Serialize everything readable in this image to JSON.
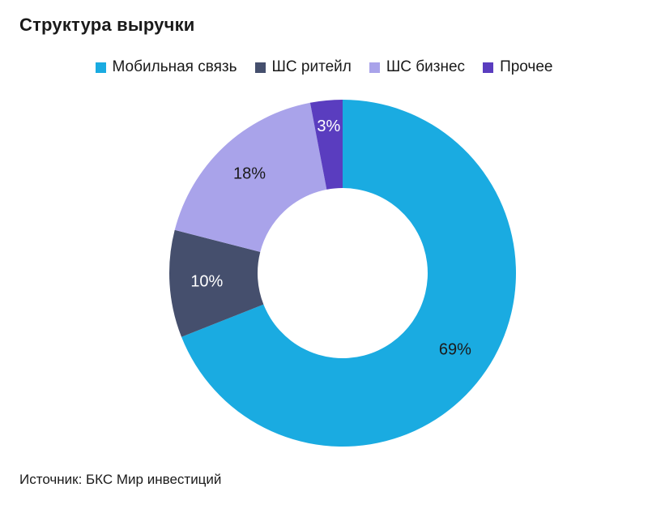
{
  "chart_data": {
    "type": "pie",
    "title": "Структура выручки",
    "categories": [
      "Мобильная связь",
      "ШС ритейл",
      "ШС бизнес",
      "Прочее"
    ],
    "values": [
      69,
      10,
      18,
      3
    ],
    "value_labels": [
      "69%",
      "10%",
      "18%",
      "3%"
    ],
    "colors": [
      "#1aabe1",
      "#454f6d",
      "#a9a3ea",
      "#5a3dbf"
    ],
    "label_colors": [
      "#1a1a1a",
      "#ffffff",
      "#1a1a1a",
      "#ffffff"
    ],
    "donut": true,
    "legend_position": "top"
  },
  "source": "Источник: БКС Мир инвестиций"
}
